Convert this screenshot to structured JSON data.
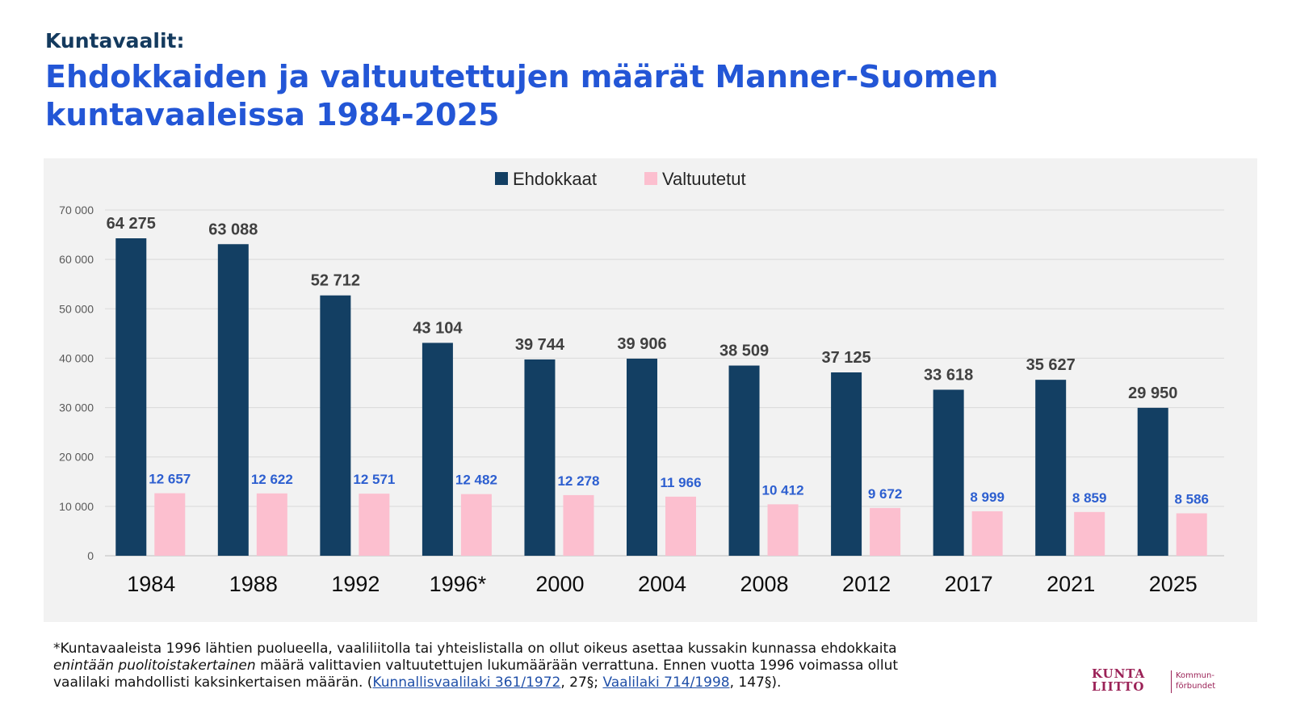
{
  "header": {
    "kicker": "Kuntavaalit:",
    "title": "Ehdokkaiden ja valtuutettujen määrät Manner-Suomen kuntavaaleissa 1984-2025"
  },
  "chart_data": {
    "type": "bar",
    "categories": [
      "1984",
      "1988",
      "1992",
      "1996*",
      "2000",
      "2004",
      "2008",
      "2012",
      "2017",
      "2021",
      "2025"
    ],
    "series": [
      {
        "name": "Ehdokkaat",
        "color": "#133f63",
        "label_color": "#404040",
        "values": [
          64275,
          63088,
          52712,
          43104,
          39744,
          39906,
          38509,
          37125,
          33618,
          35627,
          29950
        ],
        "labels": [
          "64 275",
          "63 088",
          "52 712",
          "43 104",
          "39 744",
          "39 906",
          "38 509",
          "37 125",
          "33 618",
          "35 627",
          "29 950"
        ]
      },
      {
        "name": "Valtuutetut",
        "color": "#fcbfcf",
        "label_color": "#2d5fd0",
        "values": [
          12657,
          12622,
          12571,
          12482,
          12278,
          11966,
          10412,
          9672,
          8999,
          8859,
          8586
        ],
        "labels": [
          "12 657",
          "12 622",
          "12 571",
          "12 482",
          "12 278",
          "11 966",
          "10 412",
          "9 672",
          "8 999",
          "8 859",
          "8 586"
        ]
      }
    ],
    "ylim": [
      0,
      70000
    ],
    "yticks": [
      0,
      10000,
      20000,
      30000,
      40000,
      50000,
      60000,
      70000
    ],
    "ytick_labels": [
      "0",
      "10 000",
      "20 000",
      "30 000",
      "40 000",
      "50 000",
      "60 000",
      "70 000"
    ],
    "xlabel": "",
    "ylabel": "",
    "grid": true,
    "legend_position": "top-center"
  },
  "footnote": {
    "line1": "*Kuntavaaleista 1996 lähtien puolueella, vaaliliitolla tai yhteislistalla on ollut oikeus asettaa kussakin kunnassa ehdokkaita",
    "line2_italic": "enintään puolitoistakertainen",
    "line2_rest": " määrä valittavien valtuutettujen lukumäärään verrattuna. Ennen vuotta 1996 voimassa ollut",
    "line3_start": "vaalilaki mahdollisti kaksinkertaisen määrän. (",
    "link1": "Kunnallisvaalilaki 361/1972",
    "mid": ", 27§; ",
    "link2": "Vaalilaki 714/1998",
    "end": ", 147§)."
  },
  "logo": {
    "line1": "KUNTA",
    "line2": "LIITTO",
    "sub1": "Kommun-",
    "sub2": "förbundet"
  }
}
